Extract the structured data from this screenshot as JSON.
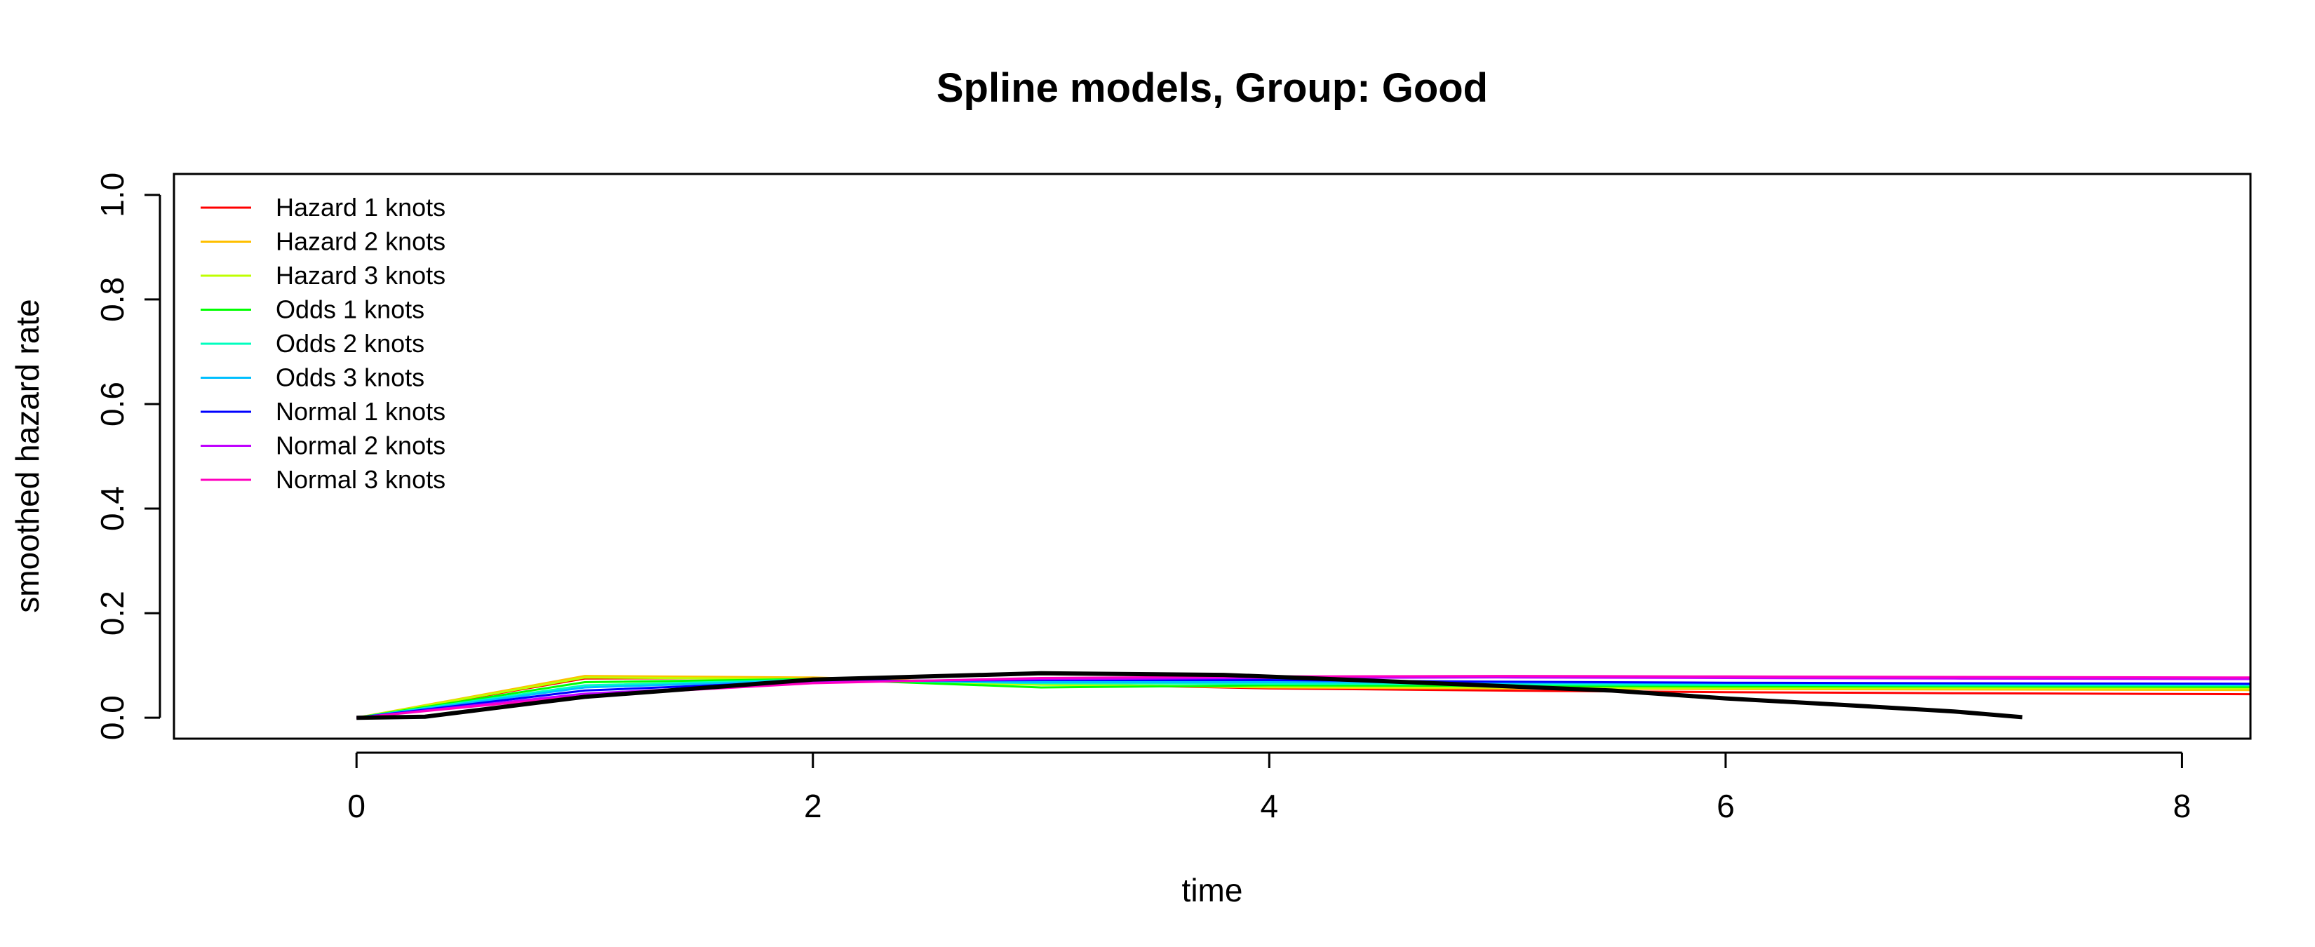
{
  "chart_data": {
    "type": "line",
    "title": "Spline models, Group: Good",
    "xlabel": "time",
    "ylabel": "smoothed hazard rate",
    "xlim": [
      -0.8,
      8.3
    ],
    "ylim": [
      -0.04,
      1.04
    ],
    "xticks": [
      0,
      2,
      4,
      6,
      8
    ],
    "yticks": [
      0.0,
      0.2,
      0.4,
      0.6,
      0.8,
      1.0
    ],
    "xtick_labels": [
      "0",
      "2",
      "4",
      "6",
      "8"
    ],
    "ytick_labels": [
      "0.0",
      "0.2",
      "0.4",
      "0.6",
      "0.8",
      "1.0"
    ],
    "grid": false,
    "legend_position": "top-left",
    "series": [
      {
        "name": "Hazard 1 knots",
        "color": "#FF0000",
        "x": [
          0,
          1,
          2,
          3,
          4,
          5,
          6,
          7,
          8.3
        ],
        "y": [
          0,
          0.075,
          0.076,
          0.065,
          0.056,
          0.052,
          0.049,
          0.047,
          0.045
        ]
      },
      {
        "name": "Hazard 2 knots",
        "color": "#FFBF00",
        "x": [
          0,
          1,
          2,
          3,
          4,
          5,
          6,
          7,
          8.3
        ],
        "y": [
          0,
          0.08,
          0.077,
          0.064,
          0.058,
          0.056,
          0.055,
          0.054,
          0.053
        ]
      },
      {
        "name": "Hazard 3 knots",
        "color": "#BFFF00",
        "x": [
          0,
          1,
          2,
          3,
          4,
          5,
          6,
          7,
          8.3
        ],
        "y": [
          0,
          0.077,
          0.074,
          0.063,
          0.059,
          0.058,
          0.057,
          0.057,
          0.056
        ]
      },
      {
        "name": "Odds 1 knots",
        "color": "#00FF00",
        "x": [
          0,
          1,
          2,
          3,
          4,
          5,
          6,
          7,
          8.3
        ],
        "y": [
          0,
          0.068,
          0.074,
          0.058,
          0.062,
          0.061,
          0.06,
          0.06,
          0.059
        ]
      },
      {
        "name": "Odds 2 knots",
        "color": "#00FFBF",
        "x": [
          0,
          1,
          2,
          3,
          4,
          5,
          6,
          7,
          8.3
        ],
        "y": [
          0,
          0.062,
          0.073,
          0.066,
          0.065,
          0.064,
          0.063,
          0.062,
          0.062
        ]
      },
      {
        "name": "Odds 3 knots",
        "color": "#00BFFF",
        "x": [
          0,
          1,
          2,
          3,
          4,
          5,
          6,
          7,
          8.3
        ],
        "y": [
          0,
          0.058,
          0.072,
          0.068,
          0.068,
          0.067,
          0.066,
          0.065,
          0.064
        ]
      },
      {
        "name": "Normal 1 knots",
        "color": "#0000FF",
        "x": [
          0,
          1,
          2,
          3,
          4,
          5,
          6,
          7,
          8.3
        ],
        "y": [
          0,
          0.052,
          0.07,
          0.072,
          0.072,
          0.069,
          0.067,
          0.066,
          0.065
        ]
      },
      {
        "name": "Normal 2 knots",
        "color": "#BF00FF",
        "x": [
          0,
          1,
          2,
          3,
          4,
          5,
          6,
          7,
          8.3
        ],
        "y": [
          0,
          0.046,
          0.068,
          0.074,
          0.076,
          0.077,
          0.076,
          0.075,
          0.074
        ]
      },
      {
        "name": "Normal 3 knots",
        "color": "#FF00BF",
        "x": [
          0,
          1,
          2,
          3,
          4,
          5,
          6,
          7,
          8.3
        ],
        "y": [
          0,
          0.042,
          0.066,
          0.076,
          0.079,
          0.08,
          0.079,
          0.078,
          0.077
        ]
      }
    ],
    "reference_line": {
      "color": "#000000",
      "x": [
        0,
        0.3,
        1,
        2,
        3,
        3.8,
        4.5,
        5.5,
        6,
        6.5,
        7,
        7.3
      ],
      "y": [
        0,
        0.002,
        0.04,
        0.073,
        0.085,
        0.082,
        0.07,
        0.052,
        0.037,
        0.025,
        0.012,
        0.001
      ]
    }
  }
}
